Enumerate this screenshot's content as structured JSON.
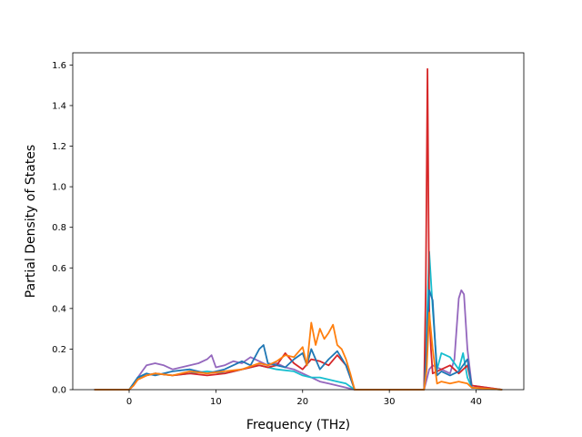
{
  "chart_data": {
    "type": "line",
    "xlabel": "Frequency (THz)",
    "ylabel": "Partial Density of States",
    "xlim": [
      -6.5,
      45.5
    ],
    "ylim": [
      0,
      1.66
    ],
    "x_ticks": [
      0,
      10,
      20,
      30,
      40
    ],
    "y_ticks": [
      0.0,
      0.2,
      0.4,
      0.6,
      0.8,
      1.0,
      1.2,
      1.4,
      1.6
    ],
    "x_tick_labels": [
      "0",
      "10",
      "20",
      "30",
      "40"
    ],
    "y_tick_labels": [
      "0.0",
      "0.2",
      "0.4",
      "0.6",
      "0.8",
      "1.0",
      "1.2",
      "1.4",
      "1.6"
    ],
    "grid": false,
    "series": [
      {
        "color": "#9467bd",
        "x": [
          -4,
          0,
          0.5,
          1,
          1.5,
          2,
          3,
          4,
          5,
          6,
          7,
          8,
          9,
          9.5,
          10,
          11,
          12,
          13,
          14,
          15,
          16,
          17,
          18,
          19,
          20,
          21,
          22,
          23,
          24,
          25,
          26,
          34,
          34.3,
          34.6,
          35,
          36,
          37,
          37.5,
          38,
          38.3,
          38.6,
          39,
          39.5,
          43
        ],
        "y": [
          0,
          0,
          0.02,
          0.06,
          0.09,
          0.12,
          0.13,
          0.12,
          0.1,
          0.11,
          0.12,
          0.13,
          0.15,
          0.17,
          0.11,
          0.12,
          0.14,
          0.13,
          0.16,
          0.14,
          0.12,
          0.13,
          0.11,
          0.1,
          0.08,
          0.06,
          0.04,
          0.03,
          0.02,
          0.01,
          0,
          0,
          0.05,
          0.1,
          0.12,
          0.1,
          0.08,
          0.15,
          0.45,
          0.49,
          0.47,
          0.2,
          0.02,
          0
        ]
      },
      {
        "color": "#17becf",
        "x": [
          -4,
          0,
          0.5,
          1,
          2,
          3,
          5,
          7,
          9,
          11,
          13,
          15,
          17,
          19,
          20,
          21,
          22,
          23,
          24,
          25,
          26,
          34,
          34.3,
          34.6,
          35,
          35.5,
          36,
          37,
          38,
          38.5,
          39,
          39.5,
          43
        ],
        "y": [
          0,
          0,
          0.03,
          0.06,
          0.07,
          0.08,
          0.07,
          0.08,
          0.09,
          0.08,
          0.1,
          0.12,
          0.1,
          0.09,
          0.07,
          0.06,
          0.06,
          0.05,
          0.04,
          0.03,
          0,
          0,
          0.3,
          0.68,
          0.4,
          0.1,
          0.18,
          0.16,
          0.1,
          0.18,
          0.06,
          0.01,
          0
        ]
      },
      {
        "color": "#d62728",
        "x": [
          -4,
          0,
          0.5,
          1,
          2,
          3,
          5,
          7,
          9,
          11,
          13,
          15,
          16,
          17,
          18,
          19,
          20,
          21,
          22,
          23,
          24,
          25,
          26,
          34,
          34.2,
          34.4,
          34.6,
          34.8,
          35,
          36,
          37,
          38,
          39,
          39.5,
          43
        ],
        "y": [
          0,
          0,
          0.02,
          0.05,
          0.07,
          0.08,
          0.07,
          0.08,
          0.07,
          0.08,
          0.1,
          0.12,
          0.11,
          0.12,
          0.18,
          0.13,
          0.1,
          0.15,
          0.14,
          0.12,
          0.17,
          0.12,
          0,
          0,
          0.5,
          1.58,
          0.4,
          0.2,
          0.08,
          0.1,
          0.12,
          0.08,
          0.12,
          0.02,
          0
        ]
      },
      {
        "color": "#1f77b4",
        "x": [
          -4,
          0,
          0.5,
          1,
          2,
          3,
          5,
          7,
          9,
          11,
          13,
          14,
          15,
          15.5,
          16,
          17,
          18,
          19,
          20,
          20.5,
          21,
          22,
          23,
          24,
          25,
          26,
          34,
          34.3,
          34.6,
          35,
          35.5,
          36,
          37,
          38,
          39,
          39.5,
          43
        ],
        "y": [
          0,
          0,
          0.03,
          0.06,
          0.08,
          0.07,
          0.09,
          0.1,
          0.08,
          0.1,
          0.14,
          0.12,
          0.2,
          0.22,
          0.13,
          0.12,
          0.11,
          0.15,
          0.18,
          0.12,
          0.2,
          0.1,
          0.15,
          0.19,
          0.12,
          0,
          0,
          0.2,
          0.49,
          0.44,
          0.07,
          0.09,
          0.07,
          0.09,
          0.15,
          0.01,
          0
        ]
      },
      {
        "color": "#ff7f0e",
        "x": [
          -4,
          0,
          0.5,
          1,
          2,
          3,
          5,
          7,
          9,
          11,
          13,
          15,
          16,
          17,
          18,
          19,
          20,
          20.5,
          21,
          21.5,
          22,
          22.5,
          23,
          23.5,
          24,
          24.5,
          25,
          25.5,
          26,
          34,
          34.3,
          34.6,
          35,
          35.5,
          36,
          37,
          38,
          39,
          39.5,
          43
        ],
        "y": [
          0,
          0,
          0.02,
          0.05,
          0.07,
          0.08,
          0.07,
          0.09,
          0.08,
          0.09,
          0.1,
          0.13,
          0.12,
          0.14,
          0.17,
          0.16,
          0.21,
          0.12,
          0.33,
          0.22,
          0.3,
          0.25,
          0.28,
          0.32,
          0.22,
          0.2,
          0.15,
          0.08,
          0,
          0,
          0.1,
          0.38,
          0.2,
          0.03,
          0.04,
          0.03,
          0.04,
          0.03,
          0.01,
          0
        ]
      }
    ]
  }
}
